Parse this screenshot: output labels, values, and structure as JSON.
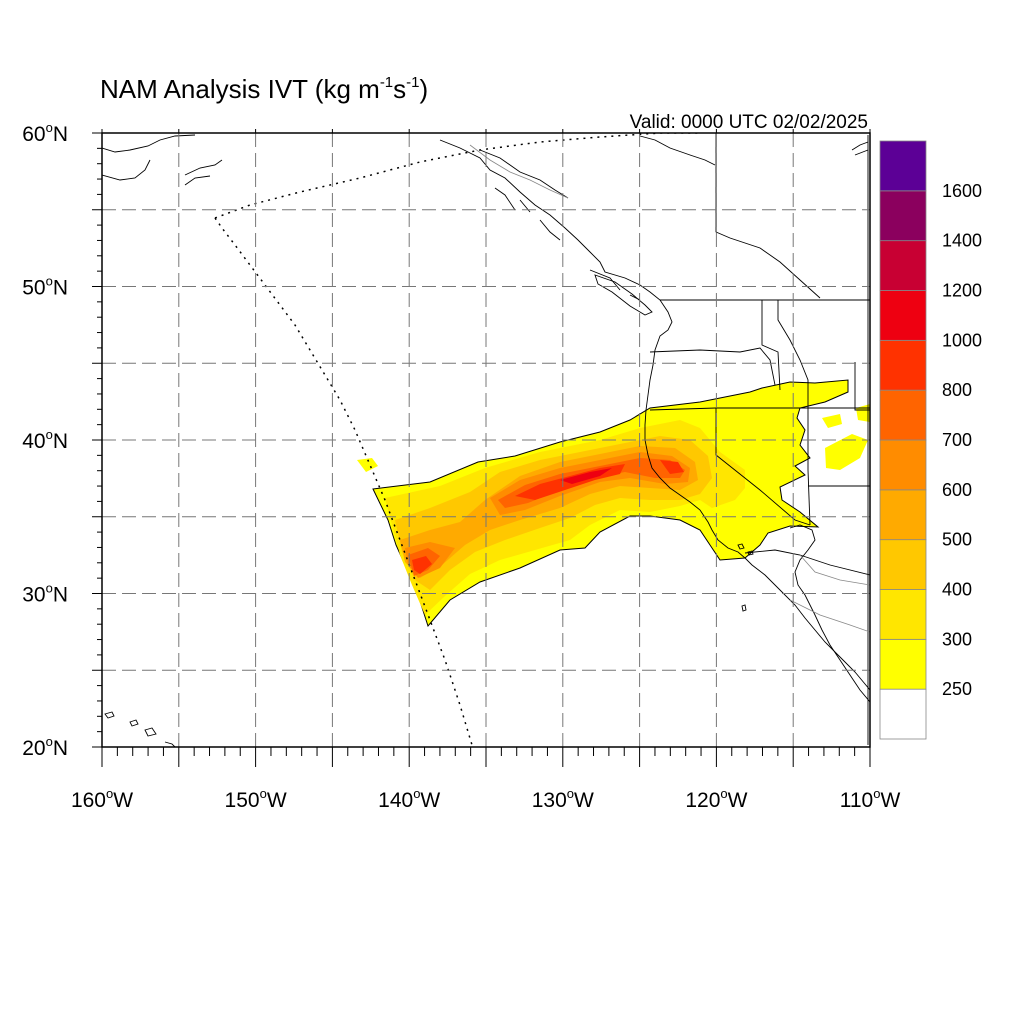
{
  "title": {
    "main": "NAM Analysis IVT (kg m",
    "exp1": "-1",
    "mid": "s",
    "exp2": "-1",
    "close": ")"
  },
  "valid_label": "Valid: 0000 UTC 02/02/2025",
  "axes": {
    "lon_range": [
      -160,
      -110
    ],
    "lat_range": [
      20,
      60
    ],
    "lon_ticks": [
      {
        "value": -160,
        "deg": "160",
        "hemi": "W"
      },
      {
        "value": -150,
        "deg": "150",
        "hemi": "W"
      },
      {
        "value": -140,
        "deg": "140",
        "hemi": "W"
      },
      {
        "value": -130,
        "deg": "130",
        "hemi": "W"
      },
      {
        "value": -120,
        "deg": "120",
        "hemi": "W"
      },
      {
        "value": -110,
        "deg": "110",
        "hemi": "W"
      }
    ],
    "lat_ticks": [
      {
        "value": 60,
        "deg": "60",
        "hemi": "N"
      },
      {
        "value": 50,
        "deg": "50",
        "hemi": "N"
      },
      {
        "value": 40,
        "deg": "40",
        "hemi": "N"
      },
      {
        "value": 30,
        "deg": "30",
        "hemi": "N"
      },
      {
        "value": 20,
        "deg": "20",
        "hemi": "N"
      }
    ],
    "grid_spacing_deg": 5,
    "grid": true
  },
  "colorbar": {
    "colors": [
      "#ffffff",
      "#ffff00",
      "#ffe600",
      "#ffc800",
      "#ffaa00",
      "#ff8c00",
      "#ff6400",
      "#ff3200",
      "#ee0011",
      "#c80033",
      "#8b005e",
      "#5c0096"
    ],
    "labels": [
      "250",
      "300",
      "400",
      "500",
      "600",
      "700",
      "800",
      "1000",
      "1200",
      "1400",
      "1600"
    ]
  },
  "colors": {
    "coast": "#000000",
    "border": "#888888",
    "grid": "#777777"
  }
}
